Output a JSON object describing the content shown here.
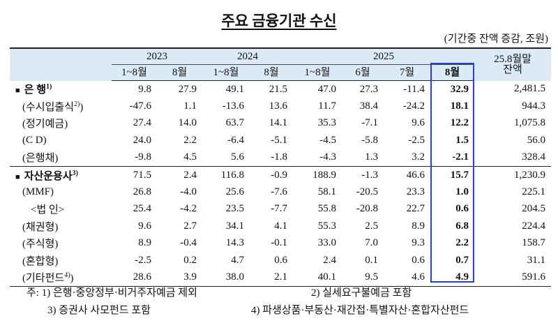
{
  "title": "주요 금융기관 수신",
  "unit": "(기간중 잔액 증감, 조원)",
  "header": {
    "years": [
      "2023",
      "2024",
      "2025"
    ],
    "balance": [
      "25.8월말",
      "잔액"
    ],
    "periods": [
      "1~8월",
      "8월",
      "1~8월",
      "8월",
      "1~8월",
      "6월",
      "7월",
      "8월"
    ]
  },
  "groups": [
    {
      "label": "은 행",
      "note": "1)",
      "values": [
        "9.8",
        "27.9",
        "49.1",
        "21.5",
        "47.0",
        "27.3",
        "-11.4",
        "32.9",
        "2,481.5"
      ],
      "items": [
        {
          "label": "(수시입출식",
          "note": "2)",
          "close": ")",
          "values": [
            "-47.6",
            "1.1",
            "-13.6",
            "13.6",
            "11.7",
            "38.4",
            "-24.2",
            "18.1",
            "944.3"
          ]
        },
        {
          "label": "(정기예금)",
          "values": [
            "27.4",
            "14.0",
            "63.7",
            "14.1",
            "35.3",
            "-7.1",
            "9.6",
            "12.2",
            "1,075.8"
          ]
        },
        {
          "label": "(C D)",
          "values": [
            "24.0",
            "2.2",
            "-6.4",
            "-5.1",
            "-4.5",
            "-5.8",
            "-2.5",
            "1.5",
            "56.0"
          ]
        },
        {
          "label": "(은행채)",
          "values": [
            "-9.8",
            "4.5",
            "5.6",
            "-1.8",
            "-4.3",
            "1.3",
            "3.2",
            "-2.1",
            "328.4"
          ]
        }
      ]
    },
    {
      "label": "자산운용사",
      "note": "3)",
      "values": [
        "71.5",
        "2.4",
        "116.8",
        "-0.9",
        "188.9",
        "-1.3",
        "46.6",
        "15.7",
        "1,230.9"
      ],
      "items": [
        {
          "label": "(MMF)",
          "values": [
            "26.8",
            "-4.0",
            "25.6",
            "-7.6",
            "58.1",
            "-20.5",
            "23.3",
            "1.0",
            "225.1"
          ],
          "items": [
            {
              "label": "<법 인>",
              "values": [
                "25.4",
                "-4.2",
                "23.5",
                "-7.7",
                "55.8",
                "-20.8",
                "22.7",
                "0.6",
                "204.5"
              ]
            }
          ]
        },
        {
          "label": "(채권형)",
          "values": [
            "9.6",
            "2.7",
            "34.1",
            "4.1",
            "55.3",
            "2.5",
            "8.9",
            "6.8",
            "224.4"
          ]
        },
        {
          "label": "(주식형)",
          "values": [
            "8.9",
            "-0.4",
            "14.3",
            "-0.1",
            "33.0",
            "7.0",
            "9.3",
            "2.2",
            "158.7"
          ]
        },
        {
          "label": "(혼합형)",
          "values": [
            "-2.5",
            "0.2",
            "4.7",
            "0.6",
            "2.4",
            "0.1",
            "0.6",
            "0.7",
            "31.1"
          ]
        },
        {
          "label": "(기타펀드",
          "note": "4)",
          "close": ")",
          "values": [
            "28.6",
            "3.9",
            "38.0",
            "2.1",
            "40.1",
            "9.5",
            "4.6",
            "4.9",
            "591.6"
          ]
        }
      ]
    }
  ],
  "notes": [
    "주: 1) 은행·중앙정부·비거주자예금 제외",
    "2) 실세요구불예금 포함",
    "3) 증권사 사모펀드 포함",
    "4) 파생상품·부동산·재간접·특별자산·혼합자산펀드"
  ]
}
